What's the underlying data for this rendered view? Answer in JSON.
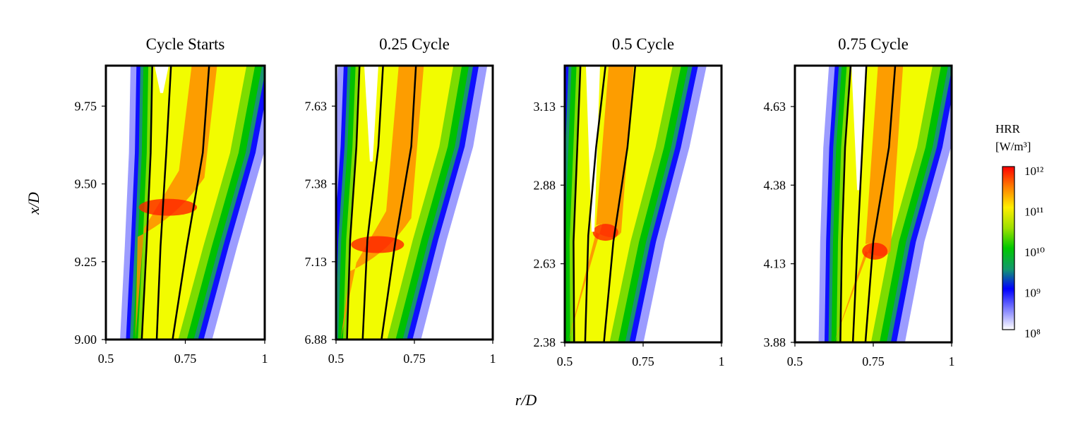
{
  "figure": {
    "ylabel": "x/D",
    "xlabel": "r/D",
    "colorbar": {
      "title_line1": "HRR",
      "title_line2": "[W/m³]",
      "tick_labels": [
        "10¹²",
        "10¹¹",
        "10¹⁰",
        "10⁹",
        "10⁸"
      ],
      "colors": [
        "#ff0000",
        "#ff8c00",
        "#ffff00",
        "#7ddc00",
        "#00c000",
        "#1a9a6a",
        "#0000ff",
        "#ffffff"
      ]
    }
  },
  "chart_data": [
    {
      "type": "heatmap",
      "title": "Cycle Starts",
      "xlim": [
        0.5,
        1.0
      ],
      "ylim": [
        9.0,
        9.88
      ],
      "x_ticks": [
        0.5,
        0.75,
        1.0
      ],
      "x_tick_labels": [
        "0.5",
        "0.75",
        "1"
      ],
      "y_ticks": [
        9.0,
        9.25,
        9.5,
        9.75
      ],
      "y_tick_labels": [
        "9.00",
        "9.25",
        "9.50",
        "9.75"
      ],
      "streamlines": [
        [
          [
            0.613,
            9.0
          ],
          [
            0.628,
            9.3
          ],
          [
            0.641,
            9.6
          ],
          [
            0.646,
            9.88
          ]
        ],
        [
          [
            0.66,
            9.0
          ],
          [
            0.672,
            9.3
          ],
          [
            0.69,
            9.6
          ],
          [
            0.705,
            9.88
          ]
        ],
        [
          [
            0.71,
            9.0
          ],
          [
            0.755,
            9.3
          ],
          [
            0.805,
            9.6
          ],
          [
            0.825,
            9.88
          ]
        ]
      ],
      "hrr_peak_r": [
        0.62,
        0.75
      ],
      "hrr_peak_x": [
        9.33,
        9.52
      ]
    },
    {
      "type": "heatmap",
      "title": "0.25 Cycle",
      "xlim": [
        0.5,
        1.0
      ],
      "ylim": [
        6.88,
        7.76
      ],
      "x_ticks": [
        0.5,
        0.75,
        1.0
      ],
      "x_tick_labels": [
        "0.5",
        "0.75",
        "1"
      ],
      "y_ticks": [
        6.88,
        7.13,
        7.38,
        7.63
      ],
      "y_tick_labels": [
        "6.88",
        "7.13",
        "7.38",
        "7.63"
      ],
      "streamlines": [
        [
          [
            0.535,
            6.88
          ],
          [
            0.545,
            7.2
          ],
          [
            0.565,
            7.5
          ],
          [
            0.575,
            7.76
          ]
        ],
        [
          [
            0.585,
            6.88
          ],
          [
            0.6,
            7.2
          ],
          [
            0.635,
            7.5
          ],
          [
            0.65,
            7.76
          ]
        ],
        [
          [
            0.645,
            6.88
          ],
          [
            0.69,
            7.2
          ],
          [
            0.74,
            7.5
          ],
          [
            0.755,
            7.76
          ]
        ]
      ],
      "hrr_peak_r": [
        0.565,
        0.68
      ],
      "hrr_peak_x": [
        7.1,
        7.27
      ]
    },
    {
      "type": "heatmap",
      "title": "0.5 Cycle",
      "xlim": [
        0.5,
        1.0
      ],
      "ylim": [
        2.38,
        3.26
      ],
      "x_ticks": [
        0.5,
        0.75,
        1.0
      ],
      "x_tick_labels": [
        "0.5",
        "0.75",
        "1"
      ],
      "y_ticks": [
        2.38,
        2.63,
        2.88,
        3.13
      ],
      "y_tick_labels": [
        "2.38",
        "2.63",
        "2.88",
        "3.13"
      ],
      "streamlines": [
        [
          [
            0.53,
            2.38
          ],
          [
            0.528,
            2.7
          ],
          [
            0.54,
            3.0
          ],
          [
            0.55,
            3.26
          ]
        ],
        [
          [
            0.565,
            2.38
          ],
          [
            0.575,
            2.72
          ],
          [
            0.6,
            3.0
          ],
          [
            0.63,
            3.26
          ]
        ],
        [
          [
            0.625,
            2.38
          ],
          [
            0.655,
            2.7
          ],
          [
            0.7,
            3.0
          ],
          [
            0.725,
            3.26
          ]
        ]
      ],
      "hrr_peak_r": [
        0.62,
        0.62
      ],
      "hrr_peak_x": [
        2.73,
        2.73
      ]
    },
    {
      "type": "heatmap",
      "title": "0.75 Cycle",
      "xlim": [
        0.5,
        1.0
      ],
      "ylim": [
        3.88,
        4.76
      ],
      "x_ticks": [
        0.5,
        0.75,
        1.0
      ],
      "x_tick_labels": [
        "0.5",
        "0.75",
        "1"
      ],
      "y_ticks": [
        3.88,
        4.13,
        4.38,
        4.63
      ],
      "y_tick_labels": [
        "3.88",
        "4.13",
        "4.38",
        "4.63"
      ],
      "streamlines": [
        [
          [
            0.645,
            3.88
          ],
          [
            0.65,
            4.2
          ],
          [
            0.66,
            4.5
          ],
          [
            0.678,
            4.76
          ]
        ],
        [
          [
            0.685,
            3.88
          ],
          [
            0.7,
            4.2
          ],
          [
            0.715,
            4.5
          ],
          [
            0.728,
            4.76
          ]
        ],
        [
          [
            0.725,
            3.88
          ],
          [
            0.75,
            4.2
          ],
          [
            0.8,
            4.5
          ],
          [
            0.82,
            4.76
          ]
        ]
      ],
      "hrr_peak_r": [
        0.745,
        0.745
      ],
      "hrr_peak_x": [
        4.17,
        4.17
      ]
    }
  ]
}
